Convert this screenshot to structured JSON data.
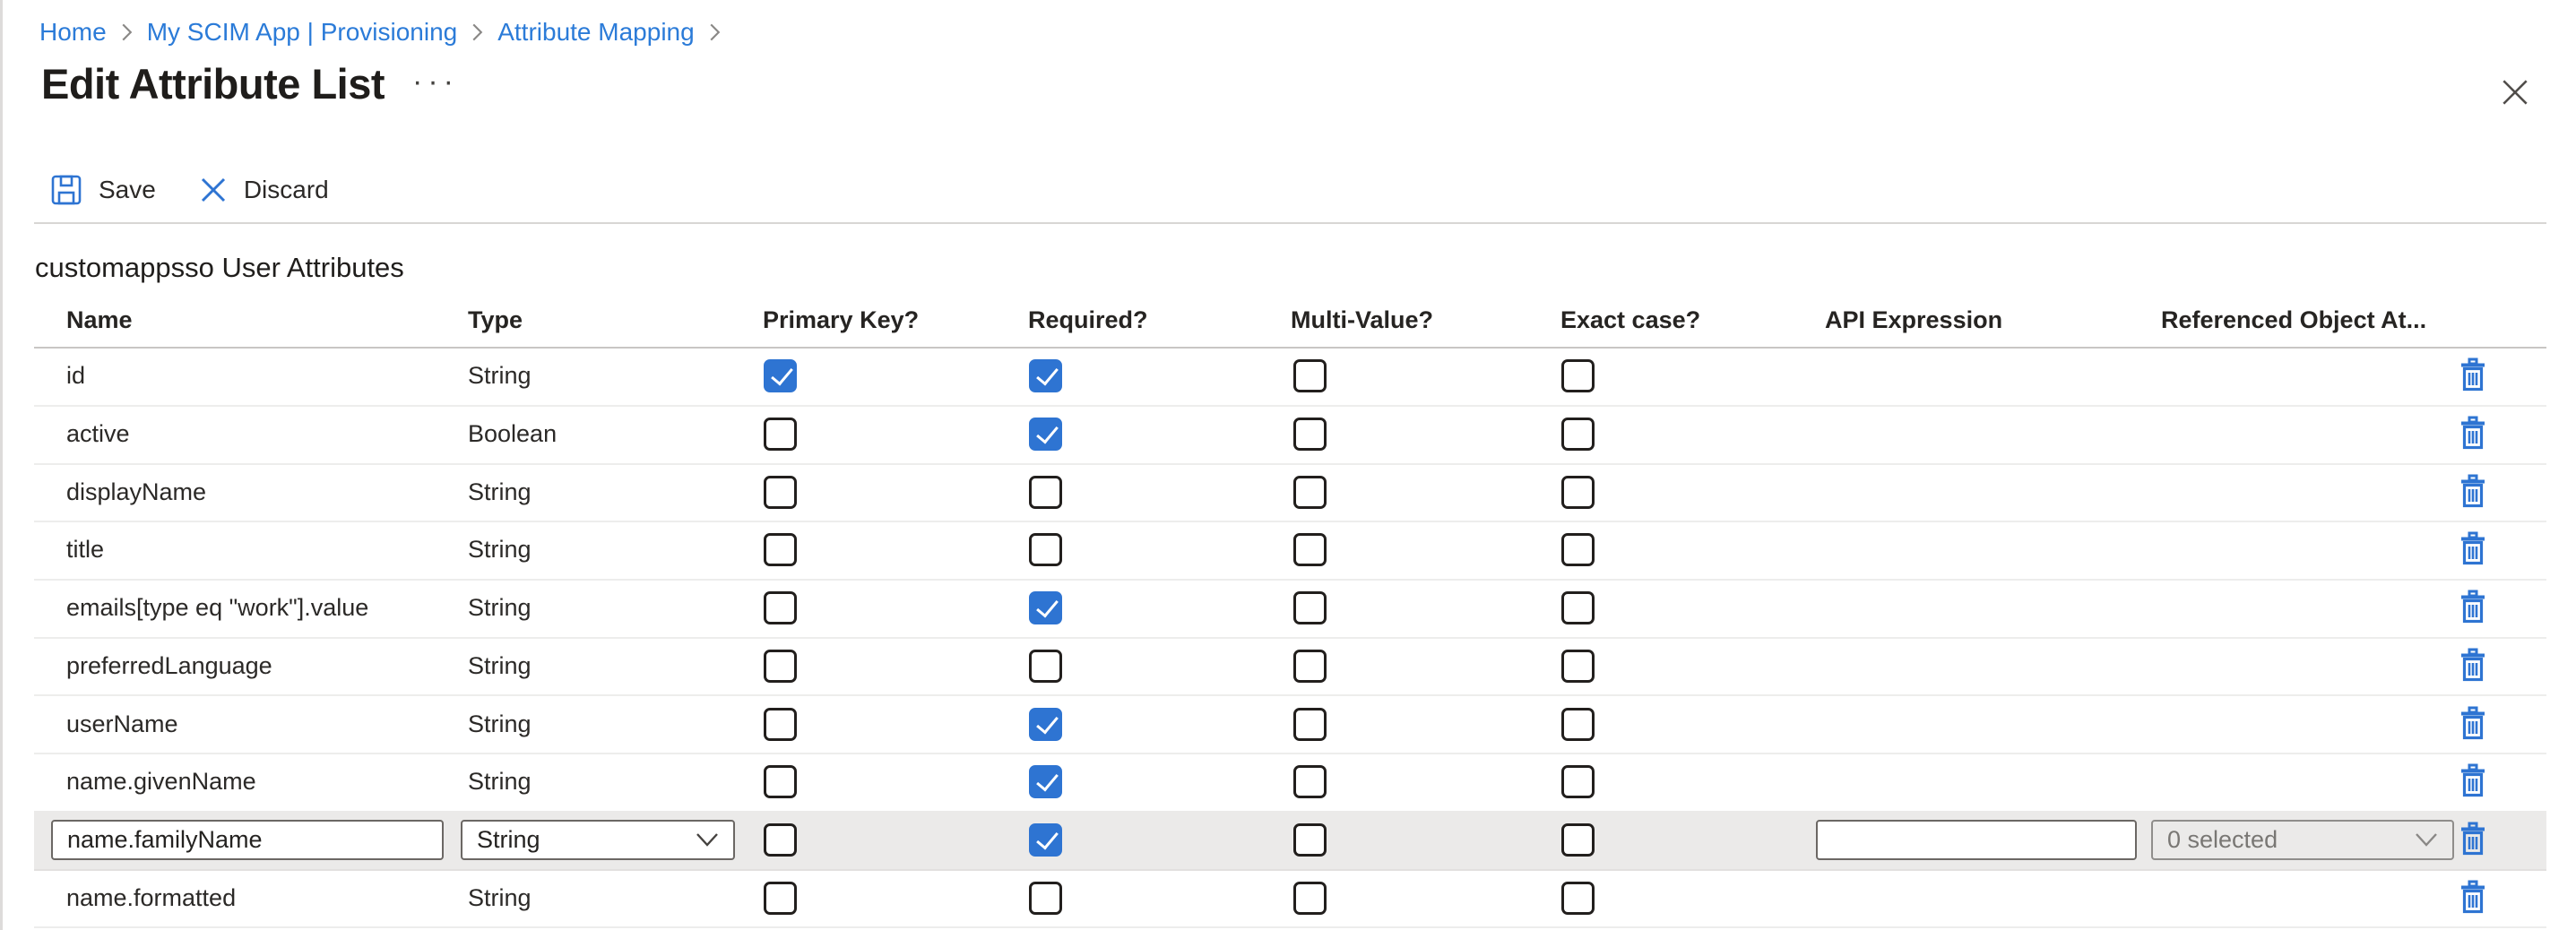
{
  "breadcrumb": {
    "items": [
      "Home",
      "My SCIM App | Provisioning",
      "Attribute Mapping"
    ]
  },
  "header": {
    "title": "Edit Attribute List",
    "more_options": "···"
  },
  "toolbar": {
    "save": "Save",
    "discard": "Discard"
  },
  "section_title": "customappsso User Attributes",
  "table": {
    "columns": [
      "Name",
      "Type",
      "Primary Key?",
      "Required?",
      "Multi-Value?",
      "Exact case?",
      "API Expression",
      "Referenced Object At..."
    ],
    "rows": [
      {
        "name": "id",
        "type": "String",
        "primary_key": true,
        "required": true,
        "multi_value": false,
        "exact_case": false
      },
      {
        "name": "active",
        "type": "Boolean",
        "primary_key": false,
        "required": true,
        "multi_value": false,
        "exact_case": false
      },
      {
        "name": "displayName",
        "type": "String",
        "primary_key": false,
        "required": false,
        "multi_value": false,
        "exact_case": false
      },
      {
        "name": "title",
        "type": "String",
        "primary_key": false,
        "required": false,
        "multi_value": false,
        "exact_case": false
      },
      {
        "name": "emails[type eq \"work\"].value",
        "type": "String",
        "primary_key": false,
        "required": true,
        "multi_value": false,
        "exact_case": false
      },
      {
        "name": "preferredLanguage",
        "type": "String",
        "primary_key": false,
        "required": false,
        "multi_value": false,
        "exact_case": false
      },
      {
        "name": "userName",
        "type": "String",
        "primary_key": false,
        "required": true,
        "multi_value": false,
        "exact_case": false
      },
      {
        "name": "name.givenName",
        "type": "String",
        "primary_key": false,
        "required": true,
        "multi_value": false,
        "exact_case": false
      },
      {
        "name": "name.familyName",
        "type": "String",
        "primary_key": false,
        "required": true,
        "multi_value": false,
        "exact_case": false,
        "editing": true,
        "api_expression": "",
        "referenced_object": "0 selected"
      },
      {
        "name": "name.formatted",
        "type": "String",
        "primary_key": false,
        "required": false,
        "multi_value": false,
        "exact_case": false
      }
    ]
  },
  "icons": {
    "save": "floppy-disk-icon",
    "discard": "x-icon",
    "close": "x-icon",
    "delete": "trash-icon",
    "breadcrumb_separator": "chevron-right-icon",
    "dropdown": "chevron-down-icon",
    "more_options": "ellipsis-icon"
  },
  "colors": {
    "accent": "#2e74d2",
    "link": "#2b7bd8",
    "band": "#ebeae9",
    "divider": "#ededec",
    "header_line": "#c8c6c4",
    "toolbar_line": "#d8d6d4",
    "input_border": "#6b6764",
    "disabled_border": "#8f8d8b",
    "disabled_text": "#797774"
  },
  "layout_numbers": {
    "rows_top": 387.3,
    "row_height": 64.7
  }
}
